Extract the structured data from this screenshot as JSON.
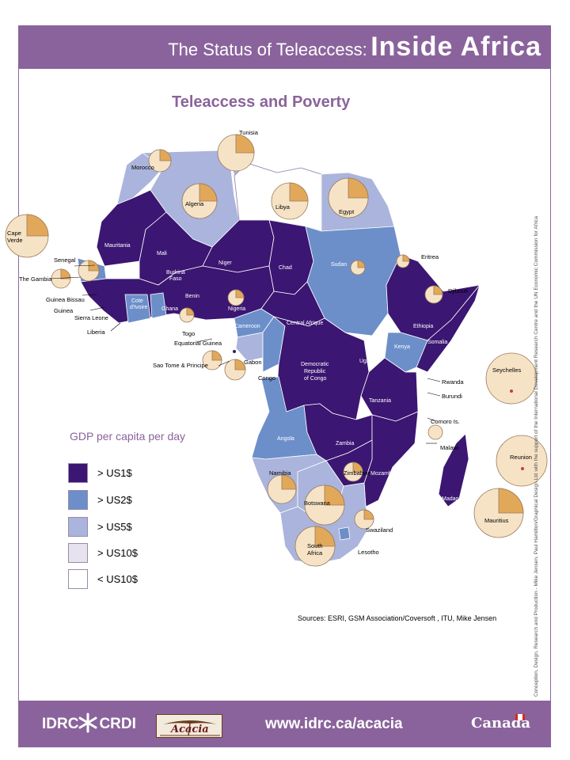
{
  "header": {
    "title_prefix": "The Status of Teleaccess:",
    "title_main": "Inside Africa"
  },
  "map": {
    "title": "Teleaccess and Poverty",
    "countries": [
      {
        "name": "Tunisia",
        "category": "> US5$"
      },
      {
        "name": "Morocco",
        "category": "> US5$"
      },
      {
        "name": "Algeria",
        "category": "> US5$"
      },
      {
        "name": "Libya",
        "category": "< US10$"
      },
      {
        "name": "Egypt",
        "category": "> US5$"
      },
      {
        "name": "Mauritania",
        "category": "> US1$"
      },
      {
        "name": "Mali",
        "category": "> US1$"
      },
      {
        "name": "Niger",
        "category": "> US1$"
      },
      {
        "name": "Chad",
        "category": "> US1$"
      },
      {
        "name": "Sudan",
        "category": "> US2$"
      },
      {
        "name": "Eritrea",
        "category": "> US1$"
      },
      {
        "name": "Djibouti",
        "category": "> US1$"
      },
      {
        "name": "Ethiopia",
        "category": "> US1$"
      },
      {
        "name": "Somalia",
        "category": "> US1$"
      },
      {
        "name": "Kenya",
        "category": "> US2$"
      },
      {
        "name": "Uganda",
        "category": "> US1$"
      },
      {
        "name": "Rwanda",
        "category": "> US1$"
      },
      {
        "name": "Burundi",
        "category": "> US1$"
      },
      {
        "name": "Tanzania",
        "category": "> US1$"
      },
      {
        "name": "Democratic Republic of Congo",
        "category": "> US1$"
      },
      {
        "name": "Congo",
        "category": "> US2$"
      },
      {
        "name": "Gabon",
        "category": "> US5$"
      },
      {
        "name": "Cameroon",
        "category": "> US2$"
      },
      {
        "name": "Central African Republic",
        "category": "> US1$"
      },
      {
        "name": "Nigeria",
        "category": "> US1$"
      },
      {
        "name": "Benin",
        "category": "> US1$"
      },
      {
        "name": "Togo",
        "category": "> US1$"
      },
      {
        "name": "Ghana",
        "category": "> US2$"
      },
      {
        "name": "Burkina Faso",
        "category": "> US1$"
      },
      {
        "name": "Cote d'Ivoire",
        "category": "> US2$"
      },
      {
        "name": "Liberia",
        "category": "> US1$"
      },
      {
        "name": "Sierra Leone",
        "category": "> US1$"
      },
      {
        "name": "Guinea",
        "category": "> US1$"
      },
      {
        "name": "Guinea Bissau",
        "category": "> US1$"
      },
      {
        "name": "The Gambia",
        "category": "> US1$"
      },
      {
        "name": "Senegal",
        "category": "> US2$"
      },
      {
        "name": "Angola",
        "category": "> US2$"
      },
      {
        "name": "Zambia",
        "category": "> US1$"
      },
      {
        "name": "Malawi",
        "category": "> US1$"
      },
      {
        "name": "Mozambique",
        "category": "> US1$"
      },
      {
        "name": "Zimbabwe",
        "category": "> US1$"
      },
      {
        "name": "Namibia",
        "category": "> US5$"
      },
      {
        "name": "Botswana",
        "category": "> US5$"
      },
      {
        "name": "South Africa",
        "category": "> US5$"
      },
      {
        "name": "Swaziland",
        "category": "> US5$"
      },
      {
        "name": "Lesotho",
        "category": "> US2$"
      },
      {
        "name": "Madagascar",
        "category": "> US1$"
      }
    ],
    "labels": {
      "tunisia": "Tunisia",
      "morocco": "Morocco",
      "algeria": "Algeria",
      "libya": "Libya",
      "egypt": "Egypt",
      "cape_verde_1": "Cape",
      "cape_verde_2": "Verde",
      "mauritania": "Mauritania",
      "mali": "Mali",
      "niger": "Niger",
      "chad": "Chad",
      "sudan": "Sudan",
      "eritrea": "Eritrea",
      "djibouti": "Djibouti",
      "ethiopia": "Ethiopia",
      "somalia": "Somalia",
      "kenya": "Kenya",
      "uganda": "Uganda",
      "rwanda": "Rwanda",
      "burundi": "Burundi",
      "tanzania": "Tanzania",
      "senegal": "Senegal",
      "gambia": "The Gambia",
      "guinea_bissau": "Guinea Bissau",
      "guinea": "Guinea",
      "sierra_leone": "Sierra Leone",
      "liberia": "Liberia",
      "burkina_1": "Burkina",
      "burkina_2": "Faso",
      "cote_1": "Cote",
      "cote_2": "d'Ivoire",
      "ghana": "Ghana",
      "benin": "Benin",
      "nigeria": "Nigeria",
      "togo": "Togo",
      "eq_guinea": "Equatorial Guinea",
      "sao_tome": "Sao Tome & Principe",
      "cameroon": "Cameroon",
      "car": "Central Afrique",
      "gabon": "Gabon",
      "congo": "Congo",
      "drc_1": "Democratic",
      "drc_2": "Republic",
      "drc_3": "of Congo",
      "seychelles": "Seychelles",
      "comoro": "Comoro Is.",
      "malawi": "Malawi",
      "reunion": "Reunion",
      "mauritius": "Mauritius",
      "angola": "Angola",
      "zambia": "Zambia",
      "zimbabwe": "Zimbabwe",
      "mozambique": "Mozambique",
      "madagascar": "Madagascar",
      "namibia": "Namibia",
      "botswana": "Botswana",
      "swaziland": "Swaziland",
      "lesotho": "Lesotho",
      "south_africa_1": "South",
      "south_africa_2": "Africa"
    }
  },
  "legend": {
    "title": "GDP per capita per day",
    "items": [
      {
        "label": "> US1$",
        "color": "#3b1672"
      },
      {
        "label": "> US2$",
        "color": "#6c8fca"
      },
      {
        "label": "> US5$",
        "color": "#aab4dc"
      },
      {
        "label": "> US10$",
        "color": "#e6e2ee"
      },
      {
        "label": "< US10$",
        "color": "#ffffff"
      }
    ]
  },
  "sources": "Sources: ESRI, GSM Association/Coversoft , ITU, Mike Jensen",
  "credit": "Conception, Design, Research and Production - Mike Jensen, Paul Hamilton/Graphical Design Ltd with the support of the International Development Research Centre and the UN Economic Commission for Africa",
  "footer": {
    "idrc": "IDRC",
    "crdi": "CRDI",
    "acacia": "Acacia",
    "url": "www.idrc.ca/acacia",
    "canada": "Canada"
  },
  "colors": {
    "banner": "#8a639c",
    "us1": "#3b1672",
    "us2": "#6c8fca",
    "us5": "#aab4dc",
    "us10": "#e6e2ee",
    "pie_fill": "#f6e3c6",
    "pie_slice": "#e2a85a"
  }
}
